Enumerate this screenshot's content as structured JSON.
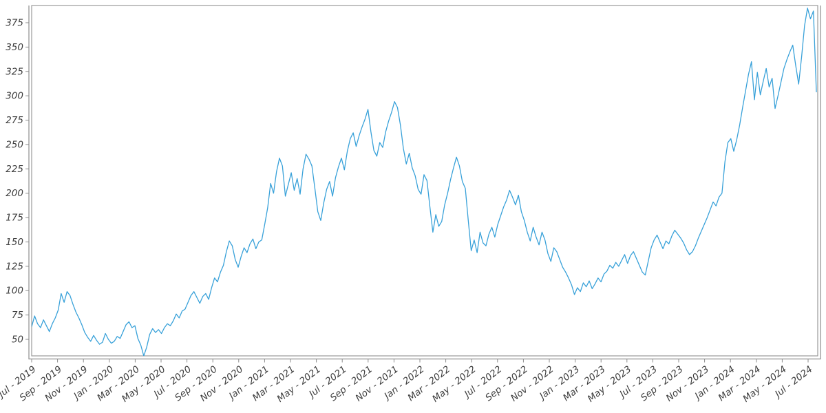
{
  "figure": {
    "background": "#ffffff",
    "frame_color": "#9a9a9a",
    "axis_line_color": "#8c8c8c",
    "tick_mark_color": "#8c8c8c",
    "tick_label_color": "#3d3d3d"
  },
  "chart_data": {
    "type": "line",
    "title": "",
    "xlabel": "",
    "ylabel": "",
    "legend": "none",
    "grid": false,
    "line_color": "#38a1d9",
    "x_range_label": "Jul 2019 to early Aug 2024, weekly samples",
    "x_tick_labels": [
      "Jul - 2019",
      "Sep - 2019",
      "Nov - 2019",
      "Jan - 2020",
      "Mar - 2020",
      "May - 2020",
      "Jul - 2020",
      "Sep - 2020",
      "Nov - 2020",
      "Jan - 2021",
      "Mar - 2021",
      "May - 2021",
      "Jul - 2021",
      "Sep - 2021",
      "Nov - 2021",
      "Jan - 2022",
      "Mar - 2022",
      "May - 2022",
      "Jul - 2022",
      "Sep - 2022",
      "Nov - 2022",
      "Jan - 2023",
      "Mar - 2023",
      "May - 2023",
      "Jul - 2023",
      "Sep - 2023",
      "Nov - 2023",
      "Jan - 2024",
      "Mar - 2024",
      "May - 2024",
      "Jul - 2024"
    ],
    "y_ticks": [
      50,
      75,
      100,
      125,
      150,
      175,
      200,
      225,
      250,
      275,
      300,
      325,
      350,
      375
    ],
    "ylim": [
      31,
      393
    ],
    "values": [
      63,
      74,
      66,
      62,
      70,
      64,
      58,
      66,
      72,
      80,
      97,
      88,
      99,
      95,
      86,
      78,
      72,
      65,
      57,
      52,
      48,
      54,
      49,
      45,
      47,
      56,
      50,
      46,
      48,
      53,
      51,
      58,
      65,
      68,
      62,
      64,
      51,
      44,
      33,
      42,
      55,
      61,
      57,
      60,
      56,
      62,
      66,
      64,
      69,
      76,
      72,
      79,
      81,
      88,
      95,
      99,
      93,
      87,
      94,
      97,
      91,
      103,
      113,
      109,
      119,
      126,
      140,
      151,
      146,
      132,
      124,
      135,
      144,
      139,
      148,
      153,
      143,
      150,
      152,
      168,
      185,
      210,
      200,
      222,
      236,
      228,
      197,
      209,
      221,
      203,
      215,
      199,
      225,
      240,
      235,
      228,
      205,
      181,
      172,
      190,
      204,
      212,
      197,
      216,
      227,
      236,
      224,
      243,
      256,
      262,
      248,
      259,
      268,
      276,
      286,
      263,
      244,
      238,
      252,
      247,
      263,
      274,
      283,
      294,
      288,
      270,
      246,
      230,
      241,
      226,
      218,
      204,
      199,
      219,
      213,
      186,
      160,
      178,
      166,
      171,
      188,
      200,
      214,
      226,
      237,
      228,
      212,
      205,
      172,
      141,
      152,
      139,
      160,
      149,
      146,
      158,
      165,
      155,
      168,
      177,
      186,
      193,
      203,
      196,
      188,
      198,
      181,
      172,
      160,
      151,
      165,
      155,
      147,
      160,
      152,
      138,
      130,
      144,
      140,
      132,
      124,
      119,
      113,
      106,
      96,
      103,
      99,
      108,
      104,
      110,
      102,
      107,
      113,
      109,
      117,
      120,
      126,
      123,
      129,
      125,
      131,
      137,
      128,
      136,
      140,
      133,
      126,
      119,
      116,
      130,
      144,
      152,
      157,
      150,
      143,
      151,
      148,
      156,
      162,
      158,
      154,
      149,
      142,
      137,
      140,
      146,
      154,
      161,
      168,
      175,
      183,
      191,
      187,
      196,
      200,
      232,
      252,
      256,
      243,
      255,
      270,
      288,
      305,
      322,
      335,
      296,
      324,
      301,
      315,
      328,
      309,
      318,
      287,
      300,
      314,
      328,
      337,
      345,
      352,
      331,
      312,
      340,
      372,
      390,
      379,
      387,
      304
    ]
  }
}
